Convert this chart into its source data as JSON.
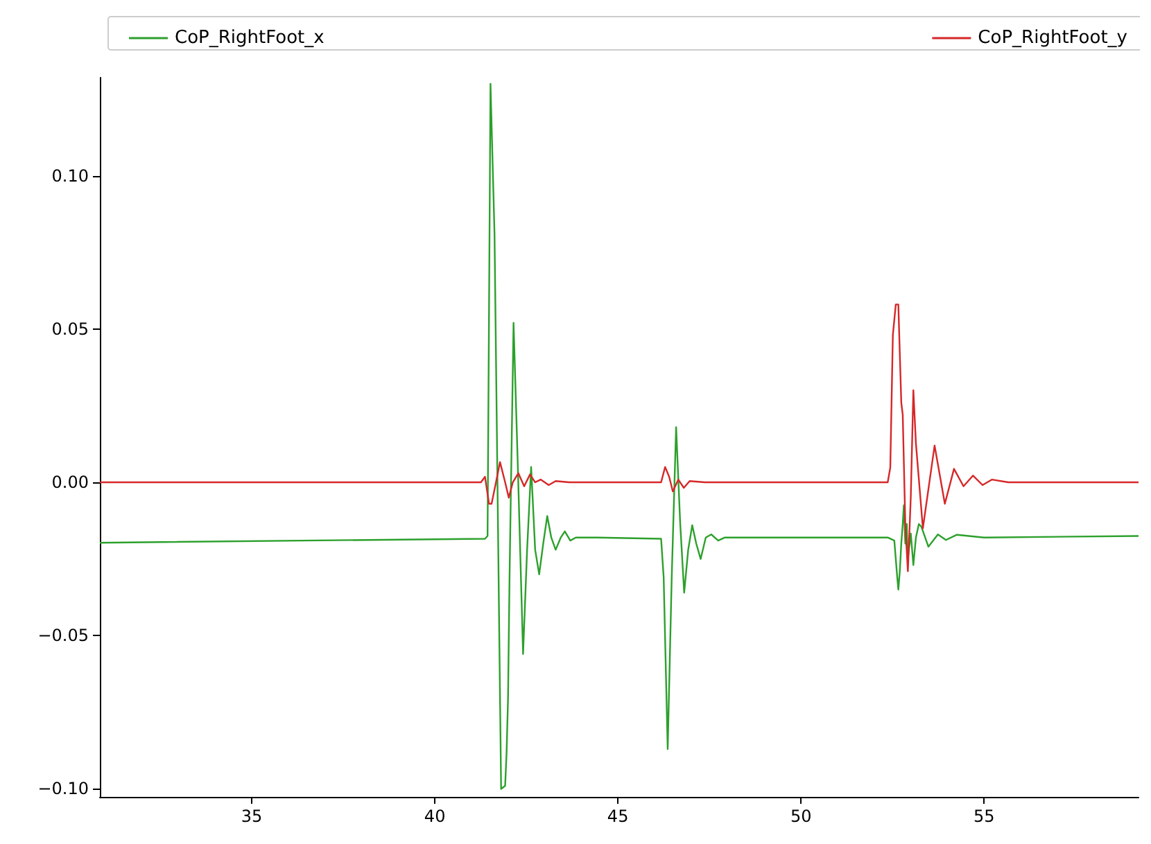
{
  "chart_data": {
    "type": "line",
    "legend": "top",
    "grid": false,
    "marker": "none",
    "line_style": "solid",
    "xlim": [
      30.85,
      59.22
    ],
    "xticks": [
      35,
      40,
      45,
      50,
      55
    ],
    "ylim": [
      -0.1026,
      0.132
    ],
    "yticks": [
      {
        "value": -0.1,
        "label": "−0.10"
      },
      {
        "value": -0.05,
        "label": "−0.05"
      },
      {
        "value": 0,
        "label": "0.00"
      },
      {
        "value": 0.05,
        "label": "0.05"
      },
      {
        "value": 0.1,
        "label": "0.10"
      }
    ],
    "series": [
      {
        "name": "CoP_RightFoot_x",
        "color": "#2ca02c",
        "x": [
          30.85,
          41.37,
          41.44,
          41.52,
          41.63,
          41.81,
          41.92,
          41.96,
          42.0,
          42.04,
          42.15,
          42.26,
          42.41,
          42.52,
          42.63,
          42.74,
          42.85,
          42.96,
          43.07,
          43.18,
          43.3,
          43.44,
          43.55,
          43.7,
          43.85,
          44.44,
          46.18,
          46.25,
          46.36,
          46.47,
          46.59,
          46.7,
          46.81,
          46.92,
          47.03,
          47.14,
          47.26,
          47.4,
          47.55,
          47.74,
          47.92,
          49.22,
          52.37,
          52.55,
          52.59,
          52.63,
          52.66,
          52.7,
          52.74,
          52.78,
          52.81,
          52.85,
          52.89,
          52.92,
          53.0,
          53.07,
          53.14,
          53.22,
          53.29,
          53.48,
          53.74,
          53.96,
          54.26,
          55.0,
          59.22
        ],
        "values": [
          -0.0197,
          -0.0184,
          -0.0175,
          0.13,
          0.081,
          -0.1,
          -0.099,
          -0.088,
          -0.07,
          -0.031,
          0.052,
          0.008,
          -0.056,
          -0.022,
          0.005,
          -0.022,
          -0.03,
          -0.02,
          -0.011,
          -0.018,
          -0.022,
          -0.018,
          -0.016,
          -0.019,
          -0.018,
          -0.018,
          -0.0184,
          -0.031,
          -0.087,
          -0.031,
          0.018,
          -0.013,
          -0.036,
          -0.022,
          -0.014,
          -0.02,
          -0.025,
          -0.018,
          -0.017,
          -0.019,
          -0.018,
          -0.018,
          -0.018,
          -0.019,
          -0.025,
          -0.031,
          -0.035,
          -0.029,
          -0.02,
          -0.0136,
          -0.0075,
          -0.02,
          -0.0136,
          -0.025,
          -0.0167,
          -0.027,
          -0.018,
          -0.0136,
          -0.0145,
          -0.021,
          -0.017,
          -0.0188,
          -0.0171,
          -0.018,
          -0.0175
        ]
      },
      {
        "name": "CoP_RightFoot_y",
        "color": "#d62728",
        "x": [
          30.85,
          41.26,
          41.37,
          41.48,
          41.55,
          41.67,
          41.78,
          41.92,
          42.02,
          42.13,
          42.28,
          42.44,
          42.6,
          42.74,
          42.89,
          43.11,
          43.3,
          43.67,
          46.18,
          46.29,
          46.4,
          46.5,
          46.65,
          46.8,
          46.96,
          47.37,
          48.85,
          52.37,
          52.44,
          52.51,
          52.59,
          52.66,
          52.74,
          52.78,
          52.85,
          52.92,
          53.0,
          53.07,
          53.14,
          53.33,
          53.65,
          53.93,
          54.18,
          54.44,
          54.7,
          54.96,
          55.22,
          55.66,
          59.22
        ],
        "values": [
          0,
          0,
          0.0018,
          -0.007,
          -0.007,
          0,
          0.0066,
          0,
          -0.005,
          0,
          0.003,
          -0.0013,
          0.0026,
          0,
          0.0009,
          -0.0009,
          0.0004,
          0,
          0,
          0.005,
          0.0018,
          -0.003,
          0.0009,
          -0.0018,
          0.0004,
          0,
          0,
          0,
          0.0048,
          0.048,
          0.058,
          0.058,
          0.026,
          0.022,
          -0.0136,
          -0.029,
          -0.0048,
          0.03,
          0.0127,
          -0.015,
          0.012,
          -0.007,
          0.0044,
          -0.0013,
          0.0022,
          -0.0009,
          0.0009,
          0,
          0
        ]
      }
    ]
  }
}
